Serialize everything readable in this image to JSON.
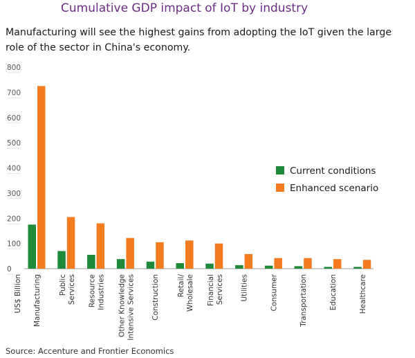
{
  "title": "Cumulative GDP impact of IoT by industry",
  "subtitle": "Manufacturing will see the highest gains from adopting the IoT given the large role of the sector in China's economy.",
  "source": "Source: Accenture and Frontier Economics",
  "colors": {
    "current": "#1e8a3a",
    "enhanced": "#f47b20",
    "axis": "#999999"
  },
  "chart_data": {
    "type": "bar",
    "ylabel": "US$ Billion",
    "ylim": [
      0,
      800
    ],
    "yticks": [
      0,
      100,
      200,
      300,
      400,
      500,
      600,
      700,
      800
    ],
    "legend_position": "right",
    "grid": false,
    "categories": [
      [
        "Manufacturing"
      ],
      [
        "Public",
        "Services"
      ],
      [
        "Resource",
        "Industries"
      ],
      [
        "Other Knowledge",
        "Intensive Services"
      ],
      [
        "Construction"
      ],
      [
        "Retail/",
        "Wholesale"
      ],
      [
        "Financial",
        "Services"
      ],
      [
        "Utilities"
      ],
      [
        "Consumer"
      ],
      [
        "Transportation"
      ],
      [
        "Education"
      ],
      [
        "Healthcare"
      ]
    ],
    "series": [
      {
        "name": "Current conditions",
        "key": "current",
        "values": [
          175,
          70,
          55,
          38,
          28,
          22,
          20,
          14,
          12,
          10,
          7,
          7
        ]
      },
      {
        "name": "Enhanced scenario",
        "key": "enhanced",
        "values": [
          725,
          205,
          180,
          122,
          105,
          112,
          100,
          58,
          42,
          42,
          38,
          35
        ]
      }
    ]
  }
}
